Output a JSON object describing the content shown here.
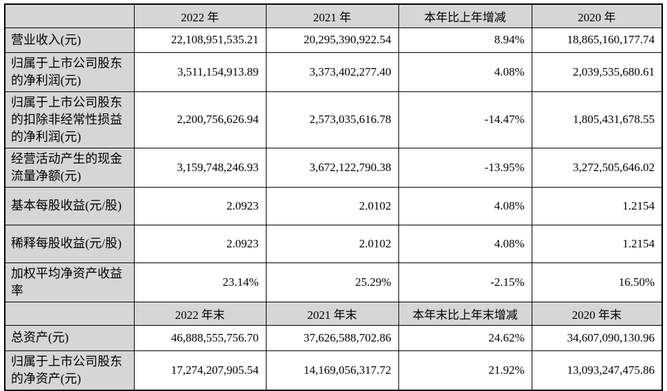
{
  "colors": {
    "header_fill": "#d6d6d6",
    "label_fill": "#d6d6d6",
    "data_fill": "#ffffff",
    "border": "#000000",
    "text": "#000000"
  },
  "table": {
    "section1": {
      "header_cols": [
        "2022 年",
        "2021 年",
        "本年比上年增减",
        "2020 年"
      ],
      "rows": [
        {
          "label": "营业收入(元)",
          "v": [
            "22,108,951,535.21",
            "20,295,390,922.54",
            "8.94%",
            "18,865,160,177.74"
          ]
        },
        {
          "label": "归属于上市公司股东的净利润(元)",
          "v": [
            "3,511,154,913.89",
            "3,373,402,277.40",
            "4.08%",
            "2,039,535,680.61"
          ]
        },
        {
          "label": "归属于上市公司股东的扣除非经常性损益的净利润(元)",
          "v": [
            "2,200,756,626.94",
            "2,573,035,616.78",
            "-14.47%",
            "1,805,431,678.55"
          ]
        },
        {
          "label": "经营活动产生的现金流量净额(元)",
          "v": [
            "3,159,748,246.93",
            "3,672,122,790.38",
            "-13.95%",
            "3,272,505,646.02"
          ]
        },
        {
          "label": "基本每股收益(元/股)",
          "v": [
            "2.0923",
            "2.0102",
            "4.08%",
            "1.2154"
          ]
        },
        {
          "label": "稀释每股收益(元/股)",
          "v": [
            "2.0923",
            "2.0102",
            "4.08%",
            "1.2154"
          ]
        },
        {
          "label": "加权平均净资产收益率",
          "v": [
            "23.14%",
            "25.29%",
            "-2.15%",
            "16.50%"
          ]
        }
      ]
    },
    "section2": {
      "header_cols": [
        "2022 年末",
        "2021 年末",
        "本年末比上年末增减",
        "2020 年末"
      ],
      "rows": [
        {
          "label": "总资产(元)",
          "v": [
            "46,888,555,756.70",
            "37,626,588,702.86",
            "24.62%",
            "34,607,090,130.96"
          ]
        },
        {
          "label": "归属于上市公司股东的净资产(元)",
          "v": [
            "17,274,207,905.54",
            "14,169,056,317.72",
            "21.92%",
            "13,093,247,475.86"
          ]
        }
      ]
    }
  }
}
